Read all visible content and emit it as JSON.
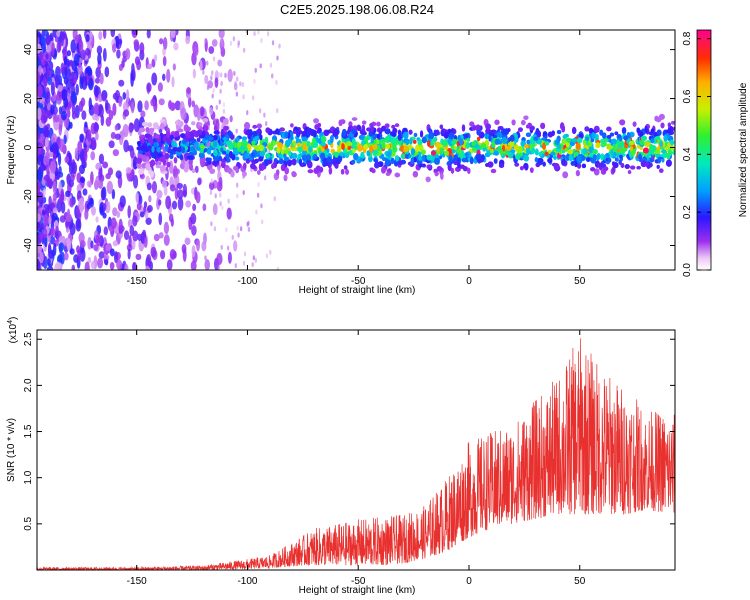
{
  "title": "C2E5.2025.198.06.08.R24",
  "chart_data": [
    {
      "type": "heatmap",
      "xlabel": "Height of straight line (km)",
      "ylabel": "Frequency (Hz)",
      "xlim": [
        -195,
        93
      ],
      "ylim": [
        -50,
        48
      ],
      "x_ticks": [
        -150,
        -100,
        -50,
        0,
        50
      ],
      "y_ticks": [
        -40,
        -20,
        0,
        20,
        40
      ],
      "colorbar": {
        "label": "Normalized spectral amplitude",
        "range": [
          0,
          0.83
        ],
        "ticks": [
          0.0,
          0.2,
          0.4,
          0.6,
          0.8
        ],
        "tick_labels": [
          "0.0",
          "0.2",
          "0.4",
          "0.6",
          "0.8"
        ]
      },
      "grid": false
    },
    {
      "type": "line",
      "xlabel": "Height of straight line (km)",
      "ylabel": "SNR (10 * v/v)",
      "scale_label": "(x10",
      "scale_exp": "4",
      "scale_close": ")",
      "xlim": [
        -195,
        93
      ],
      "ylim": [
        0,
        2.6
      ],
      "x_ticks": [
        -150,
        -100,
        -50,
        0,
        50
      ],
      "y_ticks": [
        0.5,
        1.0,
        1.5,
        2.0,
        2.5
      ],
      "y_tick_labels": [
        "0.5",
        "1.0",
        "1.5",
        "2.0",
        "2.5"
      ],
      "series": [
        {
          "color": "#e8302e",
          "envelope_x": [
            -195,
            -150,
            -120,
            -100,
            -90,
            -80,
            -70,
            -60,
            -50,
            -40,
            -30,
            -20,
            -10,
            0,
            10,
            20,
            30,
            40,
            50,
            60,
            70,
            80,
            93
          ],
          "envelope_lo": [
            0.0,
            0.0,
            0.0,
            0.01,
            0.02,
            0.04,
            0.05,
            0.05,
            0.05,
            0.05,
            0.07,
            0.12,
            0.2,
            0.35,
            0.45,
            0.5,
            0.55,
            0.6,
            0.6,
            0.6,
            0.6,
            0.65,
            0.6
          ],
          "envelope_hi": [
            0.03,
            0.03,
            0.05,
            0.12,
            0.16,
            0.3,
            0.45,
            0.5,
            0.55,
            0.58,
            0.6,
            0.7,
            1.0,
            1.4,
            1.5,
            1.6,
            1.85,
            2.1,
            2.55,
            2.2,
            2.0,
            1.75,
            1.7
          ]
        }
      ]
    }
  ]
}
